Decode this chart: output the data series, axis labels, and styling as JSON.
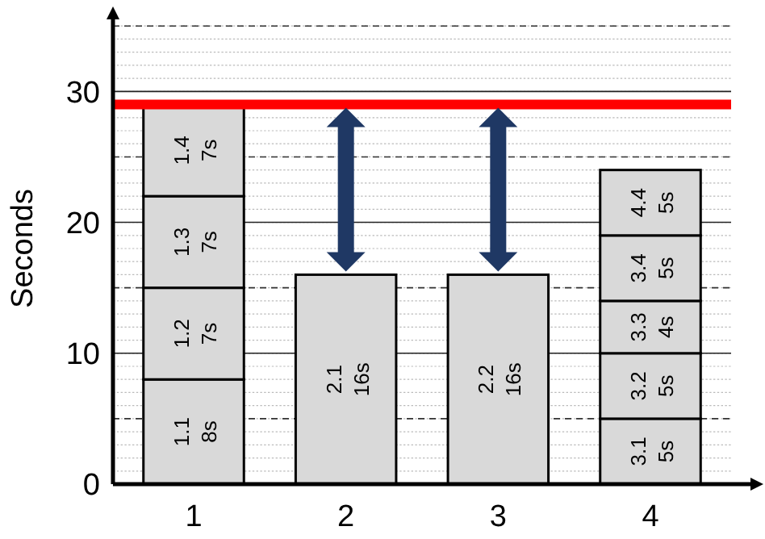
{
  "chart_data": {
    "type": "bar",
    "stacked": true,
    "ylabel": "Seconds",
    "categories": [
      "1",
      "2",
      "3",
      "4"
    ],
    "series": [
      {
        "color": "#d9d9d9",
        "values": [
          8,
          16,
          16,
          5
        ],
        "value_labels": [
          "1.1 8s",
          "2.1 16s",
          "2.2 16s",
          "3.1 5s"
        ]
      },
      {
        "color": "#d9d9d9",
        "values": [
          7,
          null,
          null,
          5
        ],
        "value_labels": [
          "1.2 7s",
          null,
          null,
          "3.2 5s"
        ]
      },
      {
        "color": "#d9d9d9",
        "values": [
          7,
          null,
          null,
          4
        ],
        "value_labels": [
          "1.3 7s",
          null,
          null,
          "3.3 4s"
        ]
      },
      {
        "color": "#d9d9d9",
        "values": [
          7,
          null,
          null,
          5
        ],
        "value_labels": [
          "1.4 7s",
          null,
          null,
          "3.4 5s"
        ]
      },
      {
        "color": "#d9d9d9",
        "values": [
          null,
          null,
          null,
          5
        ],
        "value_labels": [
          null,
          null,
          null,
          "4.4 5s"
        ]
      }
    ],
    "ylim": [
      0,
      36
    ],
    "yticks": [
      0,
      10,
      20,
      30
    ],
    "grid": "y",
    "ref_lines": [
      {
        "axis": "y",
        "value": 29,
        "color": "#ff0000"
      }
    ]
  }
}
